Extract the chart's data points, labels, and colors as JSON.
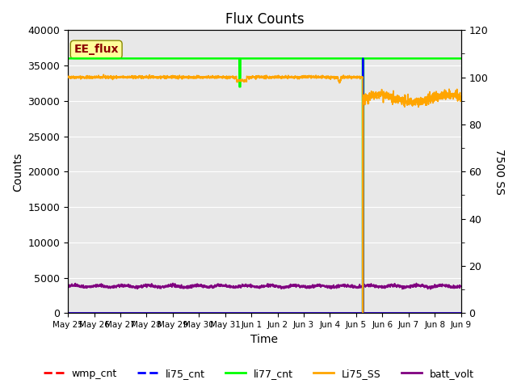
{
  "title": "Flux Counts",
  "ylabel_left": "Counts",
  "ylabel_right": "7500 SS",
  "xlabel": "Time",
  "ylim_left": [
    0,
    40000
  ],
  "ylim_right": [
    0,
    120
  ],
  "background_color": "#e8e8e8",
  "annotation_text": "EE_flux",
  "annotation_color": "#8B0000",
  "annotation_bg": "#FFFF99",
  "tick_labels": [
    "May 25",
    "May 26",
    "May 27",
    "May 28",
    "May 29",
    "May 30",
    "May 31",
    "Jun 1",
    "Jun 2",
    "Jun 3",
    "Jun 4",
    "Jun 5",
    "Jun 6",
    "Jun 7",
    "Jun 8",
    "Jun 9"
  ],
  "legend_entries": [
    "wmp_cnt",
    "li75_cnt",
    "li77_cnt",
    "Li75_SS",
    "batt_volt"
  ],
  "legend_colors": [
    "red",
    "blue",
    "lime",
    "orange",
    "purple"
  ],
  "n_days": 16,
  "li77_base": 36000,
  "Li75_SS_base": 100,
  "Li75_SS_after_drop": 91,
  "batt_volt_base": 3800,
  "batt_volt_amp": 400
}
